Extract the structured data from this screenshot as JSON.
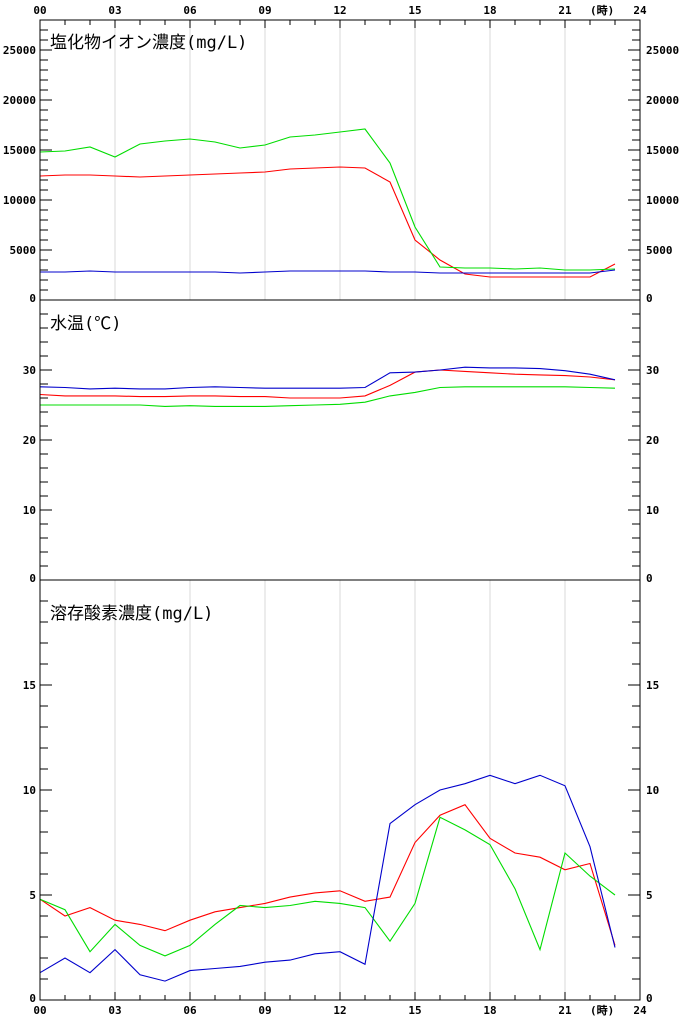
{
  "hours_label": "(時)",
  "x_ticks": [
    "00",
    "03",
    "06",
    "09",
    "12",
    "15",
    "18",
    "21",
    "24"
  ],
  "series_colors": {
    "red": "#ff0000",
    "green": "#00dd00",
    "blue": "#0000cc"
  },
  "chart_data": [
    {
      "type": "line",
      "title": "塩化物イオン濃度(mg/L)",
      "xlim": [
        0,
        24
      ],
      "ylim": [
        0,
        28000
      ],
      "y_ticks": [
        0,
        5000,
        10000,
        15000,
        20000,
        25000
      ],
      "minor_step": 1000,
      "grid": "vertical",
      "x": [
        0,
        1,
        2,
        3,
        4,
        5,
        6,
        7,
        8,
        9,
        10,
        11,
        12,
        13,
        14,
        15,
        16,
        17,
        18,
        19,
        20,
        21,
        22,
        23
      ],
      "series": [
        {
          "color": "#ff0000",
          "values": [
            12400,
            12500,
            12500,
            12400,
            12300,
            12400,
            12500,
            12600,
            12700,
            12800,
            13100,
            13200,
            13300,
            13200,
            11800,
            6000,
            4000,
            2600,
            2300,
            2300,
            2300,
            2300,
            2300,
            3600
          ]
        },
        {
          "color": "#00dd00",
          "values": [
            14800,
            14900,
            15300,
            14300,
            15600,
            15900,
            16100,
            15800,
            15200,
            15500,
            16300,
            16500,
            16800,
            17100,
            13700,
            7300,
            3300,
            3200,
            3200,
            3100,
            3200,
            3000,
            3000,
            3100
          ]
        },
        {
          "color": "#0000cc",
          "values": [
            2800,
            2800,
            2900,
            2800,
            2800,
            2800,
            2800,
            2800,
            2700,
            2800,
            2900,
            2900,
            2900,
            2900,
            2800,
            2800,
            2700,
            2700,
            2700,
            2700,
            2700,
            2700,
            2700,
            3000
          ]
        }
      ]
    },
    {
      "type": "line",
      "title": "水温(℃)",
      "xlim": [
        0,
        24
      ],
      "ylim": [
        0,
        40
      ],
      "y_ticks": [
        0,
        10,
        20,
        30
      ],
      "minor_step": 2,
      "grid": "none",
      "x": [
        0,
        1,
        2,
        3,
        4,
        5,
        6,
        7,
        8,
        9,
        10,
        11,
        12,
        13,
        14,
        15,
        16,
        17,
        18,
        19,
        20,
        21,
        22,
        23
      ],
      "series": [
        {
          "color": "#ff0000",
          "values": [
            26.5,
            26.3,
            26.3,
            26.3,
            26.2,
            26.2,
            26.3,
            26.3,
            26.2,
            26.2,
            26.0,
            26.0,
            26.0,
            26.3,
            27.8,
            29.7,
            30.0,
            29.8,
            29.6,
            29.4,
            29.3,
            29.2,
            29.0,
            28.6
          ]
        },
        {
          "color": "#00dd00",
          "values": [
            25.0,
            25.0,
            25.0,
            25.0,
            25.0,
            24.8,
            24.9,
            24.8,
            24.8,
            24.8,
            24.9,
            25.0,
            25.1,
            25.4,
            26.3,
            26.8,
            27.5,
            27.6,
            27.6,
            27.6,
            27.6,
            27.6,
            27.5,
            27.4
          ]
        },
        {
          "color": "#0000cc",
          "values": [
            27.6,
            27.5,
            27.3,
            27.4,
            27.3,
            27.3,
            27.5,
            27.6,
            27.5,
            27.4,
            27.4,
            27.4,
            27.4,
            27.5,
            29.6,
            29.7,
            30.0,
            30.4,
            30.3,
            30.3,
            30.2,
            29.9,
            29.4,
            28.6
          ]
        }
      ]
    },
    {
      "type": "line",
      "title": "溶存酸素濃度(mg/L)",
      "xlim": [
        0,
        24
      ],
      "ylim": [
        0,
        20
      ],
      "y_ticks": [
        0,
        5,
        10,
        15
      ],
      "minor_step": 1,
      "grid": "vertical",
      "x": [
        0,
        1,
        2,
        3,
        4,
        5,
        6,
        7,
        8,
        9,
        10,
        11,
        12,
        13,
        14,
        15,
        16,
        17,
        18,
        19,
        20,
        21,
        22,
        23
      ],
      "series": [
        {
          "color": "#ff0000",
          "values": [
            4.8,
            4.0,
            4.4,
            3.8,
            3.6,
            3.3,
            3.8,
            4.2,
            4.4,
            4.6,
            4.9,
            5.1,
            5.2,
            4.7,
            4.9,
            7.5,
            8.8,
            9.3,
            7.7,
            7.0,
            6.8,
            6.2,
            6.5,
            2.6
          ]
        },
        {
          "color": "#00dd00",
          "values": [
            4.8,
            4.3,
            2.3,
            3.6,
            2.6,
            2.1,
            2.6,
            3.6,
            4.5,
            4.4,
            4.5,
            4.7,
            4.6,
            4.4,
            2.8,
            4.6,
            8.7,
            8.1,
            7.4,
            5.3,
            2.4,
            7.0,
            5.9,
            5.0
          ]
        },
        {
          "color": "#0000cc",
          "values": [
            1.3,
            2.0,
            1.3,
            2.4,
            1.2,
            0.9,
            1.4,
            1.5,
            1.6,
            1.8,
            1.9,
            2.2,
            2.3,
            1.7,
            8.4,
            9.3,
            10.0,
            10.3,
            10.7,
            10.3,
            10.7,
            10.2,
            7.3,
            2.5
          ]
        }
      ]
    }
  ]
}
